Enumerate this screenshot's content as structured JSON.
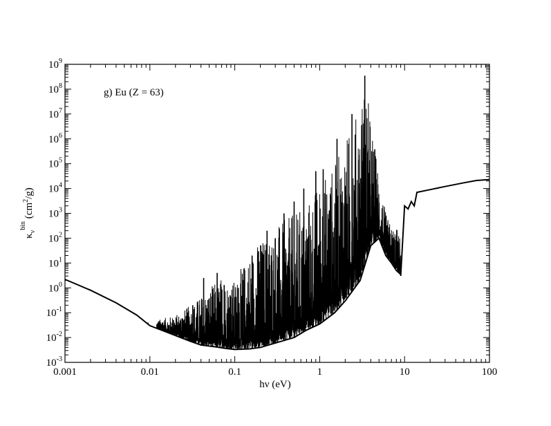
{
  "chart_data": {
    "type": "line",
    "annotation": "g) Eu (Z = 63)",
    "xlabel": "hν (eV)",
    "ylabel": {
      "symbol": "κ",
      "subscript": "ν",
      "superscript": "bin",
      "units": "(cm",
      "units_exp": "2",
      "units_end": "/g)"
    },
    "xscale": "log",
    "yscale": "log",
    "xlim": [
      0.001,
      100
    ],
    "ylim": [
      0.001,
      1000000000
    ],
    "x_tick_labels": [
      "0.001",
      "0.01",
      "0.1",
      "1",
      "10",
      "100"
    ],
    "y_tick_labels": [
      {
        "base": "10",
        "exp": "-3"
      },
      {
        "base": "10",
        "exp": "-2"
      },
      {
        "base": "10",
        "exp": "-1"
      },
      {
        "base": "10",
        "exp": "0"
      },
      {
        "base": "10",
        "exp": "1"
      },
      {
        "base": "10",
        "exp": "2"
      },
      {
        "base": "10",
        "exp": "3"
      },
      {
        "base": "10",
        "exp": "4"
      },
      {
        "base": "10",
        "exp": "5"
      },
      {
        "base": "10",
        "exp": "6"
      },
      {
        "base": "10",
        "exp": "7"
      },
      {
        "base": "10",
        "exp": "8"
      },
      {
        "base": "10",
        "exp": "9"
      }
    ],
    "grid": false,
    "line_color": "#000000",
    "series": [
      {
        "continuum_x": [
          0.001,
          0.002,
          0.004,
          0.007,
          0.01,
          0.02,
          0.03,
          0.04,
          0.06,
          0.08,
          0.1,
          0.15,
          0.2,
          0.3,
          0.5,
          0.7,
          1,
          1.5,
          2,
          3,
          4,
          5,
          6,
          7,
          8,
          9
        ],
        "continuum_y": [
          2.2,
          0.8,
          0.25,
          0.08,
          0.03,
          0.012,
          0.007,
          0.005,
          0.0042,
          0.0036,
          0.0033,
          0.0035,
          0.004,
          0.006,
          0.01,
          0.02,
          0.035,
          0.1,
          0.3,
          2,
          50,
          100,
          20,
          10,
          5,
          3.5
        ],
        "envelope_x": [
          0.012,
          0.02,
          0.03,
          0.05,
          0.07,
          0.1,
          0.15,
          0.2,
          0.3,
          0.5,
          0.7,
          1,
          1.5,
          2,
          2.5,
          3,
          3.5,
          4,
          4.5,
          5,
          6,
          7,
          8,
          9
        ],
        "envelope_y": [
          0.05,
          0.08,
          0.2,
          1,
          3,
          2,
          30,
          100,
          300,
          1000,
          3000,
          20000,
          100000,
          1000000,
          5000000,
          30000000,
          300000000,
          5000000,
          500000,
          30000,
          1000,
          300,
          300,
          100
        ],
        "spikes": [
          {
            "x": 0.0095,
            "y": 0.04
          },
          {
            "x": 0.014,
            "y": 0.04
          },
          {
            "x": 0.019,
            "y": 0.05
          },
          {
            "x": 0.024,
            "y": 0.06
          },
          {
            "x": 0.029,
            "y": 0.07
          },
          {
            "x": 0.032,
            "y": 0.2
          },
          {
            "x": 0.043,
            "y": 2.5
          },
          {
            "x": 0.047,
            "y": 0.15
          },
          {
            "x": 0.055,
            "y": 0.6
          },
          {
            "x": 0.062,
            "y": 4
          },
          {
            "x": 0.075,
            "y": 1.3
          },
          {
            "x": 0.088,
            "y": 0.5
          },
          {
            "x": 0.11,
            "y": 1
          },
          {
            "x": 0.13,
            "y": 2
          },
          {
            "x": 0.16,
            "y": 20
          },
          {
            "x": 0.19,
            "y": 30
          },
          {
            "x": 0.24,
            "y": 200
          },
          {
            "x": 0.3,
            "y": 100
          },
          {
            "x": 0.38,
            "y": 1000
          },
          {
            "x": 0.5,
            "y": 3000
          },
          {
            "x": 0.65,
            "y": 10000
          },
          {
            "x": 0.9,
            "y": 50000
          },
          {
            "x": 1.1,
            "y": 60000
          },
          {
            "x": 1.6,
            "y": 1000000
          },
          {
            "x": 2.4,
            "y": 10000000
          },
          {
            "x": 3.4,
            "y": 350000000
          }
        ],
        "upper_x": [
          9,
          10,
          11,
          12,
          13,
          14,
          20,
          30,
          50,
          70,
          100
        ],
        "upper_y": [
          3,
          2000,
          1500,
          3000,
          2000,
          7000,
          9000,
          12000,
          17000,
          21000,
          23000
        ]
      }
    ]
  }
}
